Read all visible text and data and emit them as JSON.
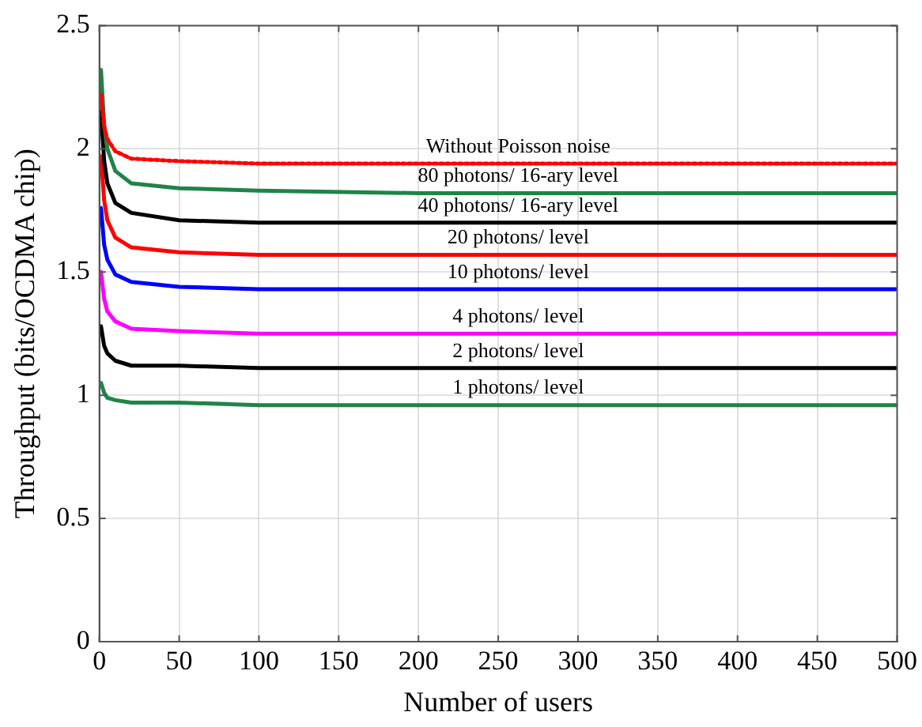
{
  "chart_data": {
    "type": "line",
    "xlabel": "Number of users",
    "ylabel": "Throughput (bits/OCDMA chip)",
    "x": [
      1,
      3,
      5,
      10,
      20,
      50,
      100,
      200,
      500
    ],
    "series": [
      {
        "name": "Without Poisson noise",
        "color": "#ff0000",
        "line_style": "dotted",
        "values": [
          2.22,
          2.09,
          2.04,
          1.99,
          1.96,
          1.95,
          1.94,
          1.94,
          1.94
        ]
      },
      {
        "name": "80 photons/ 16-ary level",
        "color": "#1e8449",
        "values": [
          2.32,
          2.1,
          2.0,
          1.91,
          1.86,
          1.84,
          1.83,
          1.82,
          1.82
        ]
      },
      {
        "name": "40 photons/ 16-ary level",
        "color": "#000000",
        "values": [
          2.15,
          1.95,
          1.86,
          1.78,
          1.74,
          1.71,
          1.7,
          1.7,
          1.7
        ]
      },
      {
        "name": "20 photons/ level",
        "color": "#ff0000",
        "values": [
          1.97,
          1.79,
          1.71,
          1.64,
          1.6,
          1.58,
          1.57,
          1.57,
          1.57
        ]
      },
      {
        "name": "10 photons/ level",
        "color": "#0000ff",
        "values": [
          1.76,
          1.61,
          1.55,
          1.49,
          1.46,
          1.44,
          1.43,
          1.43,
          1.43
        ]
      },
      {
        "name": "4 photons/ level",
        "color": "#ff00ff",
        "values": [
          1.5,
          1.39,
          1.34,
          1.3,
          1.27,
          1.26,
          1.25,
          1.25,
          1.25
        ]
      },
      {
        "name": "2 photons/ level",
        "color": "#000000",
        "values": [
          1.28,
          1.2,
          1.17,
          1.14,
          1.12,
          1.12,
          1.11,
          1.11,
          1.11
        ]
      },
      {
        "name": "1 photons/ level",
        "color": "#1e8449",
        "values": [
          1.05,
          1.01,
          0.99,
          0.98,
          0.97,
          0.97,
          0.96,
          0.96,
          0.96
        ]
      }
    ],
    "xlim": [
      0,
      500
    ],
    "xticks": [
      0,
      50,
      100,
      150,
      200,
      250,
      300,
      350,
      400,
      450,
      500
    ],
    "ylim": [
      0,
      2.5
    ],
    "yticks": [
      0,
      0.5,
      1,
      1.5,
      2,
      2.5
    ],
    "grid": true,
    "legend": false,
    "marker": "none",
    "line_style": "solid"
  }
}
